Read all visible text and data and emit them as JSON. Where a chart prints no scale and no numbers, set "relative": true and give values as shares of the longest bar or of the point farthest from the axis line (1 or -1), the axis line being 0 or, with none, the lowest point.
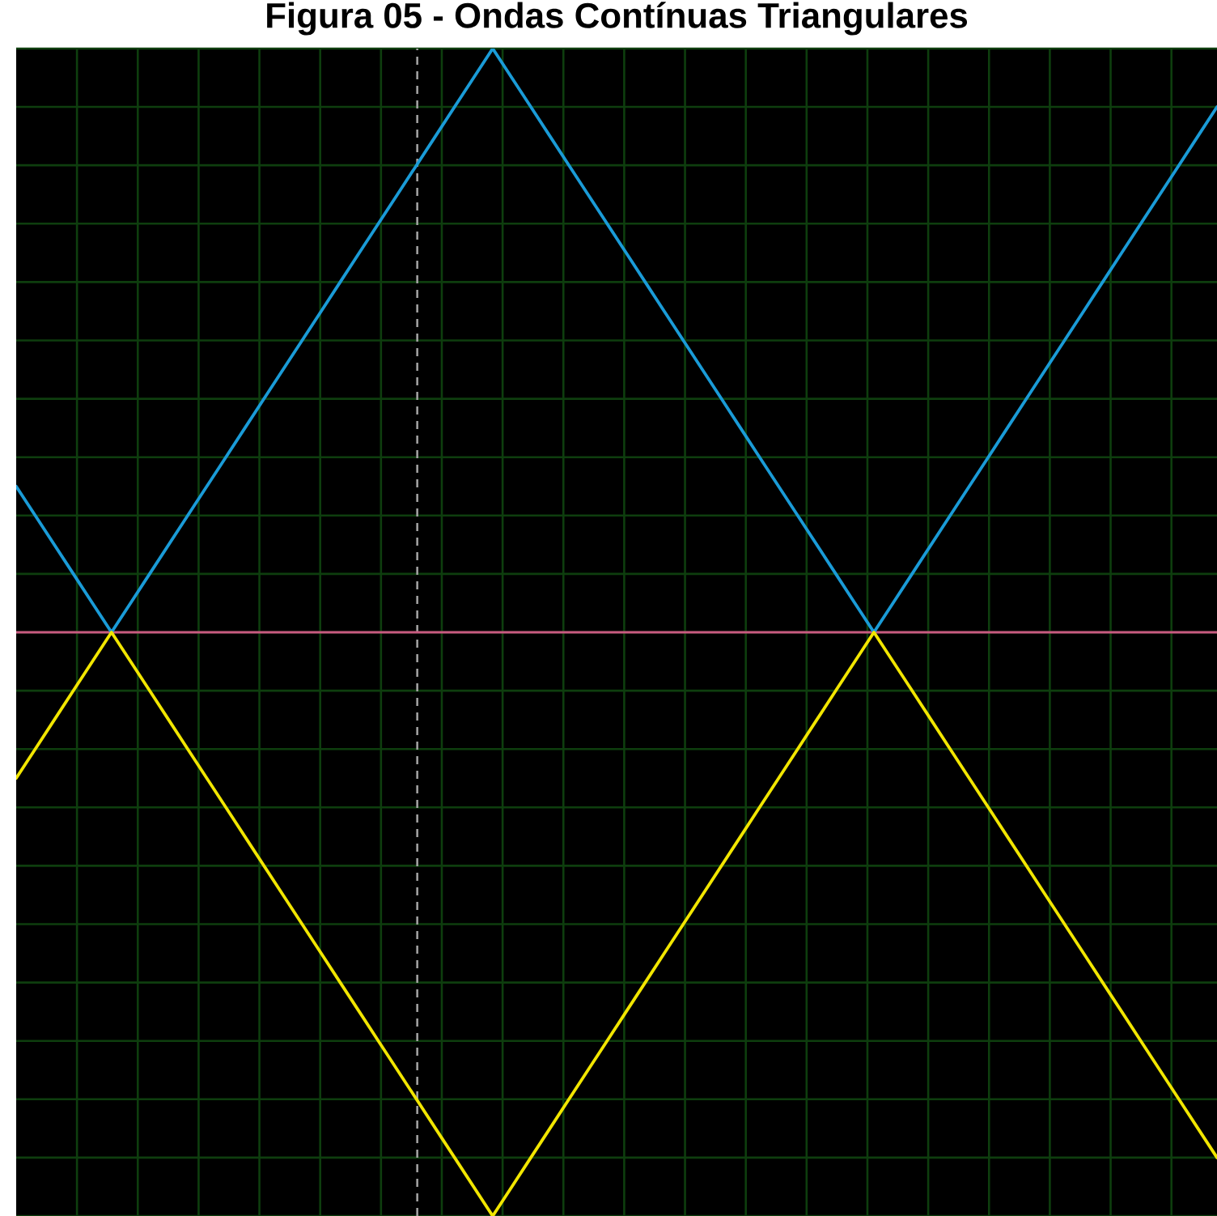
{
  "chart_data": {
    "type": "line",
    "title": "Figura 05 - Ondas Contínuas Triangulares",
    "categories": [
      null,
      null,
      null,
      null,
      null,
      null,
      null,
      null,
      null,
      null,
      null,
      null,
      null,
      null,
      null,
      null,
      null,
      null,
      null,
      null,
      null,
      null,
      null,
      null,
      null,
      null,
      null,
      null,
      null,
      null,
      null,
      null,
      null,
      null,
      null,
      null,
      null,
      null,
      null,
      null,
      null,
      null,
      null,
      null,
      null,
      null,
      null,
      null,
      null,
      null,
      null,
      null,
      null,
      null,
      null,
      null,
      null,
      null,
      null,
      null,
      null,
      null,
      null,
      null
    ],
    "series": [
      {
        "color": "#1a9bd7",
        "values": [
          0.25,
          0.2,
          0.15,
          0.1,
          0.05,
          0,
          0.05,
          0.1,
          0.15,
          0.2,
          0.25,
          0.3,
          0.35,
          0.4,
          0.45,
          0.5,
          0.55,
          0.6,
          0.65,
          0.7,
          0.75,
          0.8,
          0.85,
          0.9,
          0.95,
          1,
          0.95,
          0.9,
          0.85,
          0.8,
          0.75,
          0.7,
          0.65,
          0.6,
          0.55,
          0.5,
          0.45,
          0.4,
          0.35,
          0.3,
          0.25,
          0.2,
          0.15,
          0.1,
          0.05,
          0,
          0.05,
          0.1,
          0.15,
          0.2,
          0.25,
          0.3,
          0.35,
          0.4,
          0.45,
          0.5,
          0.55,
          0.6,
          0.65,
          0.7,
          0.75,
          0.8,
          0.85,
          0.9
        ]
      },
      {
        "color": "#f2e600",
        "values": [
          -0.25,
          -0.2,
          -0.15,
          -0.1,
          -0.05,
          0,
          -0.05,
          -0.1,
          -0.15,
          -0.2,
          -0.25,
          -0.3,
          -0.35,
          -0.4,
          -0.45,
          -0.5,
          -0.55,
          -0.6,
          -0.65,
          -0.7,
          -0.75,
          -0.8,
          -0.85,
          -0.9,
          -0.95,
          -1,
          -0.95,
          -0.9,
          -0.85,
          -0.8,
          -0.75,
          -0.7,
          -0.65,
          -0.6,
          -0.55,
          -0.5,
          -0.45,
          -0.4,
          -0.35,
          -0.3,
          -0.25,
          -0.2,
          -0.15,
          -0.1,
          -0.05,
          0,
          -0.05,
          -0.1,
          -0.15,
          -0.2,
          -0.25,
          -0.3,
          -0.35,
          -0.4,
          -0.45,
          -0.5,
          -0.55,
          -0.6,
          -0.65,
          -0.7,
          -0.75,
          -0.8,
          -0.85,
          -0.9
        ]
      }
    ],
    "relative": true,
    "grid": true,
    "ref_lines": [
      {
        "axis": "y",
        "value": 0,
        "color": "#c85a80"
      }
    ]
  }
}
